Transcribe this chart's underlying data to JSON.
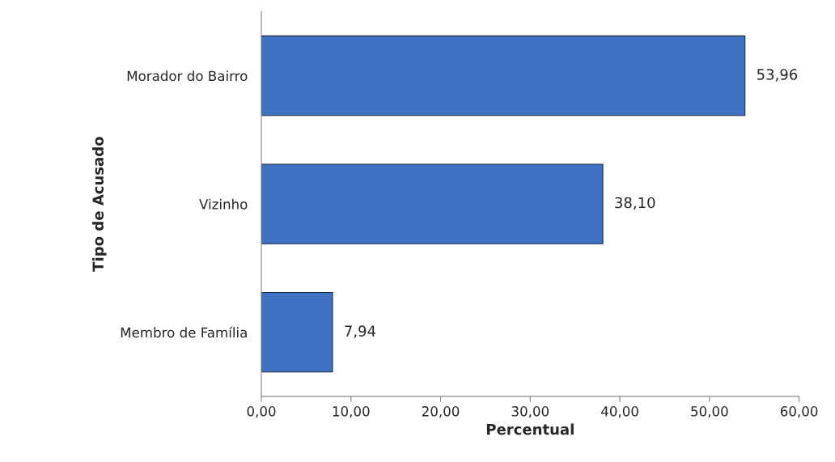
{
  "chart_data": {
    "type": "bar",
    "orientation": "horizontal",
    "xlabel": "Percentual",
    "ylabel": "Tipo de Acusado",
    "categories": [
      "Morador do Bairro",
      "Vizinho",
      "Membro de Família"
    ],
    "values": [
      53.96,
      38.1,
      7.94
    ],
    "value_labels": [
      "53,96",
      "38,10",
      "7,94"
    ],
    "color": "#3f72c2",
    "xlim": [
      0,
      60
    ],
    "xticks": [
      {
        "value": 0,
        "label": "0,00"
      },
      {
        "value": 10,
        "label": "10,00"
      },
      {
        "value": 20,
        "label": "20,00"
      },
      {
        "value": 30,
        "label": "30,00"
      },
      {
        "value": 40,
        "label": "40,00"
      },
      {
        "value": 50,
        "label": "50,00"
      },
      {
        "value": 60,
        "label": "60,00"
      }
    ],
    "grid": false,
    "legend": false
  }
}
